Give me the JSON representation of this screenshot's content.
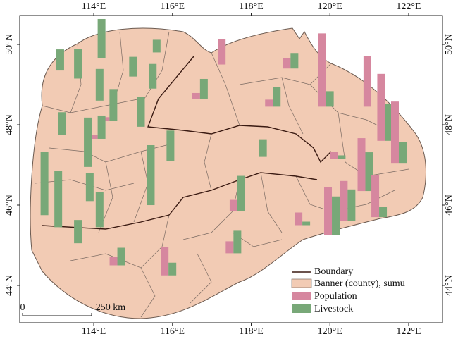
{
  "map": {
    "xlim": [
      112.12,
      122.86
    ],
    "ylim": [
      43.07,
      50.72
    ],
    "xticks": [
      {
        "value": 114,
        "label": "114°E"
      },
      {
        "value": 116,
        "label": "116°E"
      },
      {
        "value": 118,
        "label": "118°E"
      },
      {
        "value": 120,
        "label": "120°E"
      },
      {
        "value": 122,
        "label": "122°E"
      }
    ],
    "yticks": [
      {
        "value": 44,
        "label": "44°N"
      },
      {
        "value": 46,
        "label": "46°N"
      },
      {
        "value": 48,
        "label": "48°N"
      },
      {
        "value": 50,
        "label": "50°N"
      }
    ],
    "legend": {
      "boundary": "Boundary",
      "banner": "Banner (county), sumu"
    },
    "scale_bar": {
      "start": "0",
      "end": "250 km"
    },
    "series": [
      {
        "name": "Population",
        "color": "#d6879f"
      },
      {
        "name": "Livestock",
        "color": "#78a878"
      }
    ],
    "sites": [
      {
        "lon": 113.05,
        "lat": 49.35,
        "values": [
          0,
          30
        ]
      },
      {
        "lon": 113.5,
        "lat": 49.15,
        "values": [
          0,
          42
        ]
      },
      {
        "lon": 114.05,
        "lat": 48.6,
        "values": [
          0,
          45
        ]
      },
      {
        "lon": 114.1,
        "lat": 49.65,
        "values": [
          0,
          56
        ]
      },
      {
        "lon": 114.9,
        "lat": 49.2,
        "values": [
          0,
          28
        ]
      },
      {
        "lon": 115.4,
        "lat": 48.9,
        "values": [
          0,
          35
        ]
      },
      {
        "lon": 115.5,
        "lat": 49.8,
        "values": [
          0,
          18
        ]
      },
      {
        "lon": 114.4,
        "lat": 48.1,
        "values": [
          5,
          45
        ]
      },
      {
        "lon": 114.1,
        "lat": 47.65,
        "values": [
          5,
          33
        ]
      },
      {
        "lon": 115.1,
        "lat": 47.95,
        "values": [
          0,
          42
        ]
      },
      {
        "lon": 113.1,
        "lat": 47.75,
        "values": [
          0,
          32
        ]
      },
      {
        "lon": 113.75,
        "lat": 46.95,
        "values": [
          0,
          70
        ]
      },
      {
        "lon": 112.65,
        "lat": 45.75,
        "values": [
          0,
          90
        ]
      },
      {
        "lon": 113.0,
        "lat": 45.45,
        "values": [
          0,
          80
        ]
      },
      {
        "lon": 113.8,
        "lat": 46.1,
        "values": [
          0,
          40
        ]
      },
      {
        "lon": 114.05,
        "lat": 45.45,
        "values": [
          0,
          50
        ]
      },
      {
        "lon": 113.5,
        "lat": 45.05,
        "values": [
          0,
          33
        ]
      },
      {
        "lon": 115.35,
        "lat": 46.0,
        "values": [
          0,
          85
        ]
      },
      {
        "lon": 115.85,
        "lat": 47.1,
        "values": [
          0,
          43
        ]
      },
      {
        "lon": 116.7,
        "lat": 48.65,
        "values": [
          8,
          28
        ]
      },
      {
        "lon": 117.35,
        "lat": 49.5,
        "values": [
          36,
          0
        ]
      },
      {
        "lon": 117.65,
        "lat": 45.85,
        "values": [
          16,
          50
        ]
      },
      {
        "lon": 117.55,
        "lat": 44.8,
        "values": [
          17,
          32
        ]
      },
      {
        "lon": 118.2,
        "lat": 47.2,
        "values": [
          0,
          25
        ]
      },
      {
        "lon": 115.9,
        "lat": 44.25,
        "values": [
          40,
          18
        ]
      },
      {
        "lon": 114.6,
        "lat": 44.5,
        "values": [
          12,
          25
        ]
      },
      {
        "lon": 118.55,
        "lat": 48.45,
        "values": [
          10,
          28
        ]
      },
      {
        "lon": 119.0,
        "lat": 49.4,
        "values": [
          15,
          22
        ]
      },
      {
        "lon": 119.9,
        "lat": 48.45,
        "values": [
          104,
          22
        ]
      },
      {
        "lon": 121.05,
        "lat": 48.45,
        "values": [
          72,
          0
        ]
      },
      {
        "lon": 121.4,
        "lat": 47.6,
        "values": [
          95,
          52
        ]
      },
      {
        "lon": 120.9,
        "lat": 46.35,
        "values": [
          75,
          55
        ]
      },
      {
        "lon": 121.75,
        "lat": 47.05,
        "values": [
          87,
          30
        ]
      },
      {
        "lon": 120.05,
        "lat": 45.25,
        "values": [
          68,
          55
        ]
      },
      {
        "lon": 120.45,
        "lat": 45.6,
        "values": [
          57,
          45
        ]
      },
      {
        "lon": 121.25,
        "lat": 45.7,
        "values": [
          60,
          15
        ]
      },
      {
        "lon": 119.3,
        "lat": 45.5,
        "values": [
          18,
          5
        ]
      },
      {
        "lon": 120.2,
        "lat": 47.15,
        "values": [
          10,
          5
        ]
      }
    ]
  }
}
